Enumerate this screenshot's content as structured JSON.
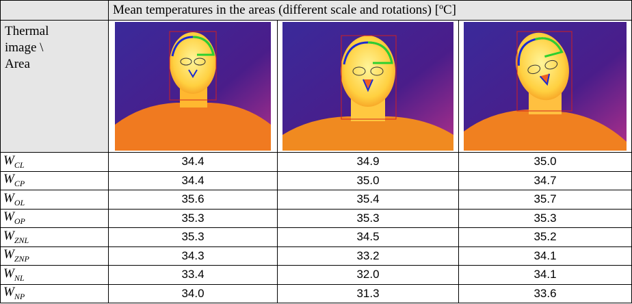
{
  "table": {
    "caption": "Mean temperatures in the areas (different scale and rotations) [ºC]",
    "corner": "Thermal image \\ Area",
    "rows": [
      {
        "label": {
          "main": "W",
          "sub": "CL"
        },
        "values": [
          "34.4",
          "34.9",
          "35.0"
        ]
      },
      {
        "label": {
          "main": "W",
          "sub": "CP"
        },
        "values": [
          "34.4",
          "35.0",
          "34.7"
        ]
      },
      {
        "label": {
          "main": "W",
          "sub": "OL"
        },
        "values": [
          "35.6",
          "35.4",
          "35.7"
        ]
      },
      {
        "label": {
          "main": "W",
          "sub": "OP"
        },
        "values": [
          "35.3",
          "35.3",
          "35.3"
        ]
      },
      {
        "label": {
          "main": "W",
          "sub": "ZNL"
        },
        "values": [
          "35.3",
          "34.5",
          "35.2"
        ]
      },
      {
        "label": {
          "main": "W",
          "sub": "ZNP"
        },
        "values": [
          "34.3",
          "33.2",
          "34.1"
        ]
      },
      {
        "label": {
          "main": "W",
          "sub": "NL"
        },
        "values": [
          "33.4",
          "32.0",
          "34.1"
        ]
      },
      {
        "label": {
          "main": "W",
          "sub": "NP"
        },
        "values": [
          "34.0",
          "31.3",
          "33.6"
        ]
      }
    ]
  }
}
